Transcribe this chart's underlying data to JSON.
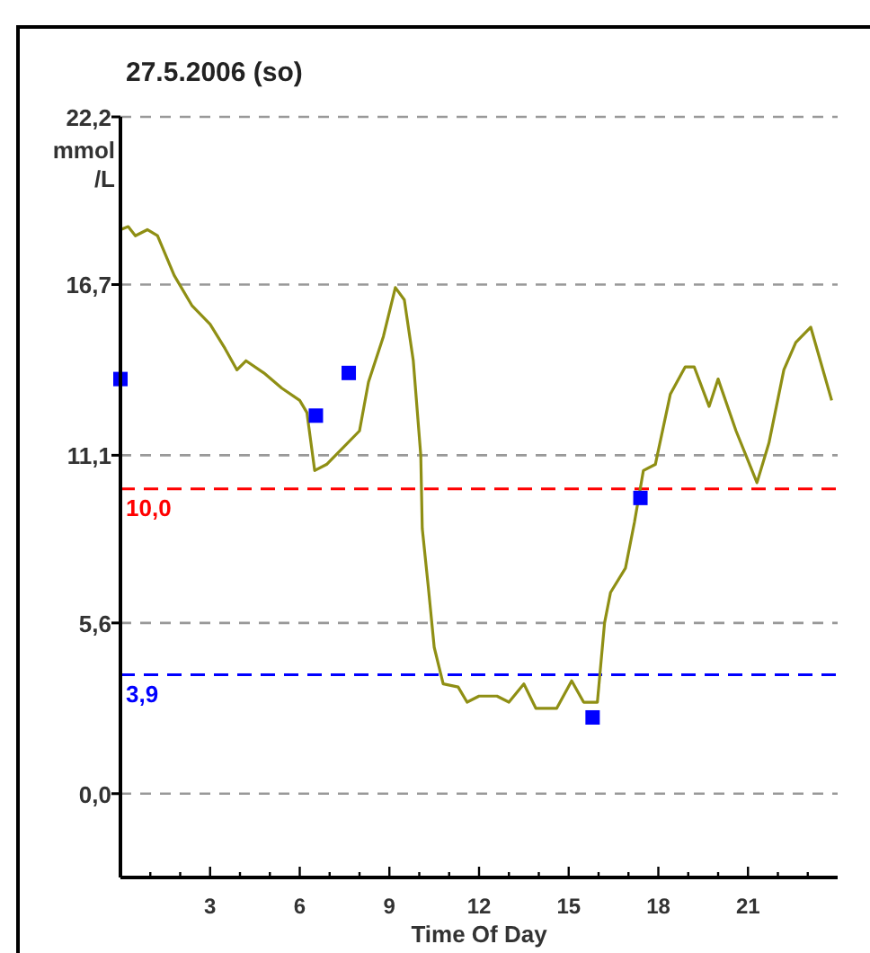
{
  "chart_data": {
    "type": "line",
    "title": "27.5.2006 (so)",
    "xlabel": "Time Of Day",
    "ylabel": "mmol /L",
    "xlim": [
      0,
      24
    ],
    "ylim": [
      -2.75,
      22.2
    ],
    "xticks": [
      {
        "value": 1,
        "label": null
      },
      {
        "value": 2,
        "label": null
      },
      3,
      {
        "value": 4,
        "label": null
      },
      {
        "value": 5,
        "label": null
      },
      6,
      {
        "value": 7,
        "label": null
      },
      {
        "value": 8,
        "label": null
      },
      9,
      {
        "value": 10,
        "label": null
      },
      {
        "value": 11,
        "label": null
      },
      12,
      {
        "value": 13,
        "label": null
      },
      {
        "value": 14,
        "label": null
      },
      15,
      {
        "value": 16,
        "label": null
      },
      {
        "value": 17,
        "label": null
      },
      18,
      {
        "value": 19,
        "label": null
      },
      {
        "value": 20,
        "label": null
      },
      21,
      {
        "value": 22,
        "label": null
      },
      {
        "value": 23,
        "label": null
      }
    ],
    "yticks": [
      {
        "value": 0,
        "label": "0,0"
      },
      {
        "value": 5.6,
        "label": "5,6"
      },
      {
        "value": 11.1,
        "label": "11,1"
      },
      {
        "value": 16.7,
        "label": "16,7"
      },
      {
        "value": 22.2,
        "label": "22,2"
      }
    ],
    "grid": "y",
    "series": [
      {
        "color": "#8f8f14",
        "marker": "none",
        "line_style": "solid",
        "x": [
          0,
          0.26,
          0.5,
          0.9,
          1.24,
          1.8,
          2.4,
          3.0,
          3.5,
          3.9,
          4.2,
          4.8,
          5.4,
          6.0,
          6.24,
          6.5,
          6.9,
          7.4,
          8.0,
          8.3,
          8.8,
          9.2,
          9.5,
          9.8,
          10.05,
          10.1,
          10.3,
          10.5,
          10.8,
          11.3,
          11.6,
          12.0,
          12.6,
          13.0,
          13.5,
          13.9,
          14.6,
          15.1,
          15.5,
          15.96,
          16.2,
          16.4,
          16.9,
          17.2,
          17.5,
          17.9,
          18.4,
          18.9,
          19.2,
          19.7,
          20.0,
          20.6,
          21.3,
          21.7,
          22.2,
          22.6,
          23.1,
          23.8
        ],
        "values": [
          18.5,
          18.6,
          18.3,
          18.5,
          18.3,
          17.0,
          16.0,
          15.4,
          14.6,
          13.9,
          14.2,
          13.8,
          13.3,
          12.9,
          12.5,
          10.6,
          10.8,
          11.3,
          11.9,
          13.5,
          15.0,
          16.6,
          16.2,
          14.2,
          11.1,
          8.7,
          6.8,
          4.8,
          3.6,
          3.5,
          3.0,
          3.2,
          3.2,
          3.0,
          3.6,
          2.8,
          2.8,
          3.7,
          3.0,
          3.0,
          5.6,
          6.6,
          7.4,
          8.9,
          10.6,
          10.8,
          13.1,
          14.0,
          14.0,
          12.7,
          13.6,
          11.9,
          10.2,
          11.5,
          13.9,
          14.8,
          15.3,
          12.9
        ]
      },
      {
        "type": "scatter",
        "color": "#0000ff",
        "marker": "square",
        "x": [
          0,
          6.54,
          7.64,
          15.8,
          17.4
        ],
        "values": [
          13.6,
          12.4,
          13.8,
          2.5,
          9.7
        ]
      }
    ],
    "ref_lines": [
      {
        "axis": "y",
        "value": 10.0,
        "label": "10,0",
        "color": "#ff0000",
        "line_style": "dashed"
      },
      {
        "axis": "y",
        "value": 3.9,
        "label": "3,9",
        "color": "#0000ff",
        "line_style": "dashed"
      }
    ]
  }
}
